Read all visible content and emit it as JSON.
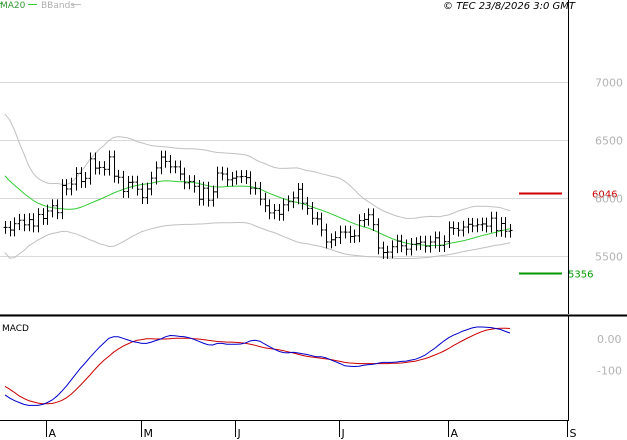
{
  "header": {
    "legend_ma": "MA20",
    "legend_bbands": "BBands",
    "copyright": "© TEC 23/8/2026 3:0 GMT"
  },
  "macd_title": "MACD",
  "colors": {
    "price_bars": "#000000",
    "ma20": "#33cc33",
    "bbands": "#c0c0c0",
    "resistance": "#cc0000",
    "support": "#009900",
    "macd_line": "#0000cc",
    "signal_line": "#cc0000",
    "grid": "#d9d9d9"
  },
  "chart_data": [
    {
      "type": "ohlc",
      "x_labels": [
        "A",
        "M",
        "J",
        "J",
        "A",
        "S"
      ],
      "y_ticks": [
        "7000",
        "6500",
        "6000",
        "5500"
      ],
      "ylim": [
        5000,
        7600
      ],
      "grid": true,
      "legend": [
        "MA20",
        "BBands"
      ],
      "series": {
        "close": [
          5748,
          5725,
          5780,
          5810,
          5770,
          5815,
          5760,
          5860,
          5825,
          5890,
          5935,
          5875,
          6110,
          6080,
          6122,
          6214,
          6144,
          6172,
          6340,
          6260,
          6266,
          6250,
          6357,
          6190,
          6181,
          6058,
          6137,
          6139,
          6078,
          6005,
          6080,
          6174,
          6262,
          6356,
          6318,
          6271,
          6271,
          6209,
          6133,
          6145,
          6103,
          5991,
          6087,
          5983,
          6055,
          6218,
          6209,
          6159,
          6173,
          6185,
          6188,
          6178,
          6087,
          6085,
          5992,
          5935,
          5873,
          5895,
          5861,
          5943,
          5970,
          6003,
          6077,
          5957,
          5912,
          5827,
          5821,
          5726,
          5622,
          5641,
          5660,
          5708,
          5707,
          5669,
          5675,
          5807,
          5817,
          5857,
          5772,
          5570,
          5531,
          5535,
          5581,
          5630,
          5589,
          5560,
          5602,
          5608,
          5621,
          5585,
          5622,
          5658,
          5591,
          5625,
          5745,
          5739,
          5724,
          5751,
          5775,
          5761,
          5771,
          5778,
          5759,
          5828,
          5722,
          5782,
          5715,
          5722
        ],
        "ma20": [
          6193,
          6149,
          6113,
          6077,
          6042,
          6011,
          5980,
          5957,
          5941,
          5927,
          5918,
          5913,
          5909,
          5904,
          5904,
          5910,
          5921,
          5936,
          5955,
          5972,
          5989,
          6006,
          6025,
          6045,
          6061,
          6075,
          6089,
          6101,
          6112,
          6119,
          6124,
          6130,
          6140,
          6147,
          6151,
          6149,
          6145,
          6143,
          6142,
          6140,
          6135,
          6128,
          6118,
          6108,
          6100,
          6098,
          6097,
          6101,
          6104,
          6105,
          6105,
          6104,
          6101,
          6092,
          6079,
          6061,
          6043,
          6027,
          6011,
          5996,
          5983,
          5972,
          5963,
          5953,
          5941,
          5926,
          5911,
          5898,
          5883,
          5866,
          5850,
          5832,
          5815,
          5796,
          5780,
          5766,
          5752,
          5741,
          5726,
          5707,
          5687,
          5669,
          5651,
          5636,
          5623,
          5612,
          5604,
          5598,
          5597,
          5594,
          5591,
          5592,
          5594,
          5599,
          5609,
          5617,
          5624,
          5631,
          5642,
          5653,
          5665,
          5676,
          5686,
          5697,
          5706,
          5718,
          5727,
          5737
        ],
        "bb_upper": [
          6727,
          6676,
          6591,
          6480,
          6384,
          6284,
          6213,
          6171,
          6147,
          6131,
          6126,
          6128,
          6120,
          6119,
          6136,
          6174,
          6226,
          6276,
          6335,
          6380,
          6423,
          6457,
          6499,
          6525,
          6532,
          6528,
          6521,
          6507,
          6489,
          6478,
          6466,
          6455,
          6450,
          6447,
          6443,
          6439,
          6434,
          6430,
          6428,
          6427,
          6426,
          6423,
          6419,
          6411,
          6401,
          6395,
          6393,
          6390,
          6387,
          6384,
          6379,
          6374,
          6360,
          6334,
          6315,
          6300,
          6282,
          6266,
          6259,
          6258,
          6259,
          6261,
          6262,
          6250,
          6239,
          6233,
          6225,
          6212,
          6202,
          6191,
          6183,
          6170,
          6145,
          6113,
          6073,
          6032,
          5997,
          5970,
          5942,
          5916,
          5894,
          5877,
          5860,
          5846,
          5835,
          5826,
          5826,
          5828,
          5835,
          5840,
          5843,
          5842,
          5840,
          5848,
          5856,
          5872,
          5889,
          5903,
          5914,
          5927,
          5931,
          5931,
          5930,
          5927,
          5924,
          5918,
          5904,
          5893
        ],
        "bb_lower": [
          5531,
          5482,
          5486,
          5519,
          5548,
          5588,
          5613,
          5640,
          5661,
          5682,
          5695,
          5703,
          5713,
          5715,
          5702,
          5693,
          5676,
          5660,
          5641,
          5626,
          5607,
          5598,
          5583,
          5586,
          5602,
          5624,
          5647,
          5671,
          5692,
          5712,
          5724,
          5737,
          5746,
          5756,
          5762,
          5767,
          5770,
          5771,
          5774,
          5774,
          5775,
          5777,
          5778,
          5782,
          5786,
          5787,
          5789,
          5789,
          5789,
          5790,
          5790,
          5788,
          5779,
          5761,
          5746,
          5731,
          5716,
          5704,
          5687,
          5669,
          5653,
          5637,
          5621,
          5612,
          5608,
          5598,
          5591,
          5582,
          5570,
          5557,
          5543,
          5530,
          5518,
          5511,
          5507,
          5504,
          5499,
          5495,
          5494,
          5493,
          5490,
          5486,
          5483,
          5480,
          5479,
          5479,
          5480,
          5482,
          5484,
          5487,
          5491,
          5497,
          5502,
          5507,
          5513,
          5521,
          5528,
          5538,
          5546,
          5554,
          5561,
          5569,
          5577,
          5586,
          5593,
          5599,
          5607,
          5615
        ]
      },
      "levels": [
        {
          "label": "6046",
          "value": 6046,
          "color": "#cc0000"
        },
        {
          "label": "5356",
          "value": 5356,
          "color": "#009900"
        }
      ]
    },
    {
      "type": "line",
      "title": "MACD",
      "y_ticks": [
        "0.00",
        "-100"
      ],
      "ylim": [
        -250,
        60
      ],
      "series": [
        {
          "values": [
            -177,
            -187,
            -195,
            -201,
            -207,
            -210,
            -210,
            -210,
            -207,
            -201,
            -193,
            -181,
            -166,
            -149,
            -130,
            -111,
            -92,
            -76,
            -58,
            -42,
            -26,
            -12,
            2,
            7,
            7,
            2,
            -3,
            -8,
            -11,
            -14,
            -14,
            -10,
            -5,
            0,
            7,
            11,
            10,
            8,
            7,
            4,
            -1,
            -7,
            -13,
            -18,
            -19,
            -14,
            -14,
            -17,
            -17,
            -17,
            -16,
            -12,
            -6,
            -4,
            -7,
            -16,
            -24,
            -32,
            -39,
            -43,
            -44,
            -42,
            -44,
            -47,
            -49,
            -53,
            -56,
            -56,
            -60,
            -66,
            -72,
            -78,
            -85,
            -86,
            -87,
            -86,
            -83,
            -81,
            -80,
            -77,
            -74,
            -74,
            -74,
            -73,
            -71,
            -70,
            -67,
            -64,
            -58,
            -51,
            -40,
            -30,
            -18,
            -6,
            4,
            12,
            18,
            25,
            30,
            35,
            38,
            38,
            37,
            36,
            33,
            30,
            24,
            19
          ]
        },
        {
          "values": [
            -150,
            -159,
            -169,
            -180,
            -188,
            -195,
            -199,
            -203,
            -205,
            -205,
            -204,
            -200,
            -195,
            -186,
            -175,
            -161,
            -146,
            -130,
            -114,
            -97,
            -81,
            -67,
            -55,
            -42,
            -32,
            -23,
            -16,
            -9,
            -4,
            -2,
            1,
            1,
            0,
            0,
            0,
            1,
            2,
            2,
            2,
            2,
            1,
            0,
            -2,
            -4,
            -6,
            -8,
            -9,
            -10,
            -10,
            -11,
            -12,
            -14,
            -17,
            -20,
            -24,
            -28,
            -30,
            -32,
            -34,
            -37,
            -41,
            -44,
            -48,
            -52,
            -55,
            -57,
            -59,
            -61,
            -63,
            -65,
            -68,
            -71,
            -74,
            -76,
            -77,
            -78,
            -78,
            -78,
            -78,
            -78,
            -78,
            -78,
            -77,
            -77,
            -76,
            -74,
            -72,
            -70,
            -66,
            -62,
            -57,
            -51,
            -45,
            -38,
            -30,
            -21,
            -13,
            -5,
            3,
            10,
            17,
            23,
            28,
            31,
            33,
            34,
            34,
            33
          ]
        }
      ]
    }
  ]
}
